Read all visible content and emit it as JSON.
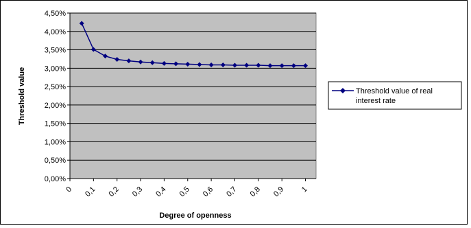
{
  "chart_data": {
    "type": "line",
    "xlabel": "Degree of openness",
    "ylabel": "Threshold value",
    "ylim": [
      0,
      0.045
    ],
    "y_ticks": [
      "0,00%",
      "0,50%",
      "1,00%",
      "1,50%",
      "2,00%",
      "2,50%",
      "3,00%",
      "3,50%",
      "4,00%",
      "4,50%"
    ],
    "x_ticks": [
      "0",
      "0,1",
      "0,2",
      "0,3",
      "0,4",
      "0,5",
      "0,6",
      "0,7",
      "0,8",
      "0,9",
      "1"
    ],
    "plot_background": "#c0c0c0",
    "grid": true,
    "legend_position": "right",
    "series": [
      {
        "name": "Threshold value of real interest rate",
        "color": "#000080",
        "marker": "diamond",
        "x": [
          0.05,
          0.1,
          0.15,
          0.2,
          0.25,
          0.3,
          0.35,
          0.4,
          0.45,
          0.5,
          0.55,
          0.6,
          0.65,
          0.7,
          0.75,
          0.8,
          0.85,
          0.9,
          0.95,
          1.0
        ],
        "values": [
          0.0422,
          0.0351,
          0.0333,
          0.0324,
          0.032,
          0.0317,
          0.0315,
          0.0313,
          0.0312,
          0.0311,
          0.031,
          0.0309,
          0.0309,
          0.0308,
          0.0308,
          0.0308,
          0.0307,
          0.0307,
          0.0307,
          0.0307
        ]
      }
    ]
  }
}
